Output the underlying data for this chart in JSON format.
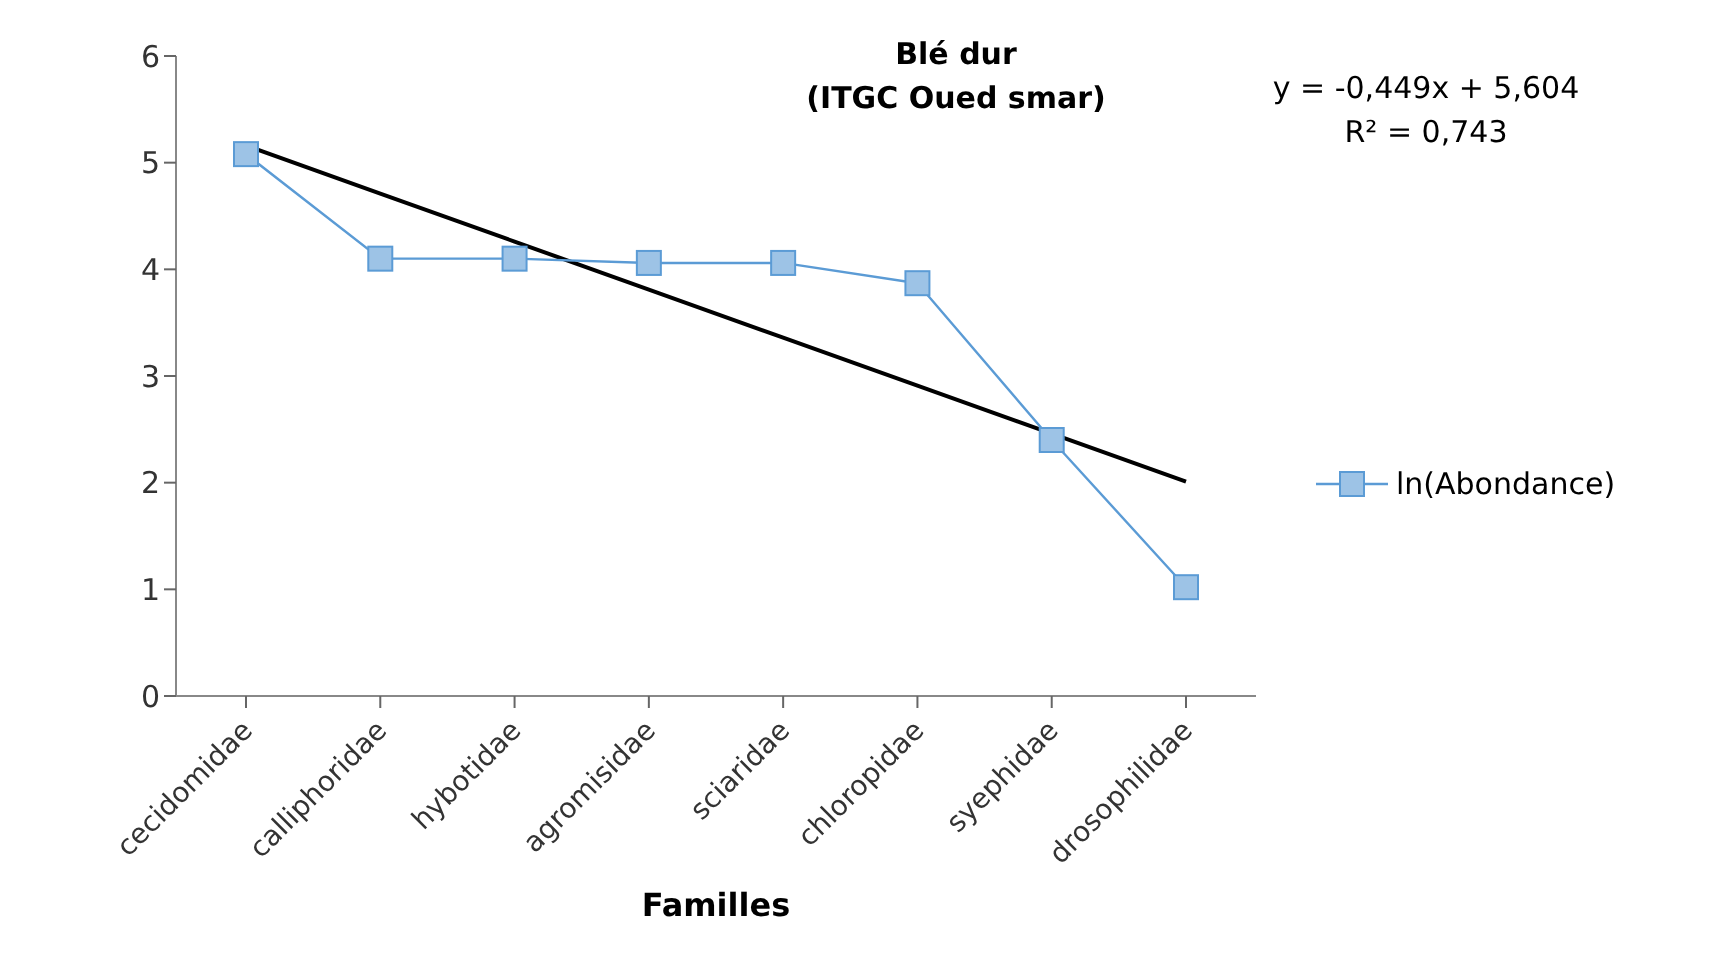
{
  "chart_data": {
    "type": "line",
    "title": "Blé dur",
    "subtitle": "(ITGC Oued smar)",
    "xlabel": "Familles",
    "categories": [
      "cecidomidae",
      "calliphoridae",
      "hybotidae",
      "agromisidae",
      "sciaridae",
      "chloropidae",
      "syephidae",
      "drosophilidae"
    ],
    "series": [
      {
        "name": "ln(Abondance)",
        "color": "#5b9bd5",
        "marker": "square",
        "values": [
          5.08,
          4.1,
          4.1,
          4.06,
          4.06,
          3.87,
          2.4,
          1.02
        ]
      },
      {
        "type": "line",
        "color": "#000000",
        "marker": "none",
        "values": [
          5.16,
          4.71,
          4.26,
          3.81,
          3.36,
          2.91,
          2.46,
          2.01
        ]
      }
    ],
    "ylim": [
      0,
      6
    ],
    "yticks": [
      0,
      1,
      2,
      3,
      4,
      5,
      6
    ],
    "grid": false,
    "legend": "right",
    "line_style": "solid",
    "annotations": [
      "y = -0,449x + 5,604",
      "R² = 0,743"
    ]
  }
}
